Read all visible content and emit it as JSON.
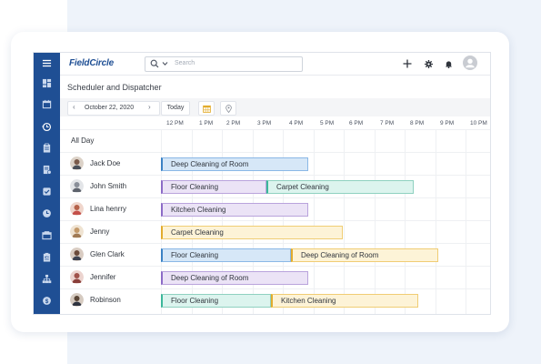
{
  "app": {
    "logo": "FieldCircle",
    "search_placeholder": "Search",
    "page_title": "Scheduler and Dispatcher"
  },
  "toolbar": {
    "date": "October 22, 2020",
    "today_label": "Today"
  },
  "timeline": {
    "hours": [
      "12 PM",
      "1 PM",
      "2 PM",
      "3 PM",
      "4 PM",
      "5 PM",
      "6 PM",
      "7 PM",
      "8 PM",
      "9 PM",
      "10 PM"
    ]
  },
  "rows": {
    "all_day": "All Day",
    "people": [
      {
        "name": "Jack Doe",
        "avatar_color": "#7a5a4a",
        "events": [
          {
            "label": "Deep Cleaning of Room",
            "color": "blue"
          }
        ]
      },
      {
        "name": "John Smith",
        "avatar_color": "#8a8f99",
        "events": [
          {
            "label": "Floor Cleaning",
            "color": "purple"
          },
          {
            "label": "Carpet Cleaning",
            "color": "teal"
          }
        ]
      },
      {
        "name": "Lina henrry",
        "avatar_color": "#b5624a",
        "events": [
          {
            "label": "Kitchen Cleaning",
            "color": "purple"
          }
        ]
      },
      {
        "name": "Jenny",
        "avatar_color": "#c39a6b",
        "events": [
          {
            "label": "Carpet Cleaning",
            "color": "yellow"
          }
        ]
      },
      {
        "name": "Glen Clark",
        "avatar_color": "#6b4a3a",
        "events": [
          {
            "label": "Floor Cleaning",
            "color": "blue"
          },
          {
            "label": "Deep Cleaning of Room",
            "color": "yellow"
          }
        ]
      },
      {
        "name": "Jennifer",
        "avatar_color": "#a0524a",
        "events": [
          {
            "label": "Deep Cleaning of Room",
            "color": "purple"
          }
        ]
      },
      {
        "name": "Robinson",
        "avatar_color": "#5a4636",
        "events": [
          {
            "label": "Floor Cleaning",
            "color": "teal"
          },
          {
            "label": "Kitchen Cleaning",
            "color": "yellow"
          }
        ]
      }
    ]
  },
  "colors": {
    "sidebar": "#1f4f94",
    "blue": "#3b82c4",
    "purple": "#8c6bc7",
    "teal": "#3bb79a",
    "yellow": "#e2ac2d"
  },
  "icons": {
    "sidebar": [
      "menu-icon",
      "dashboard-icon",
      "calendar-icon",
      "dispatch-icon",
      "clipboard-icon",
      "invoice-icon",
      "checkbox-icon",
      "clock-icon",
      "inventory-icon",
      "checklist-icon",
      "hierarchy-icon",
      "dollar-icon"
    ],
    "topbar": [
      "plus-icon",
      "gear-icon",
      "bell-icon",
      "user-avatar-icon"
    ]
  }
}
